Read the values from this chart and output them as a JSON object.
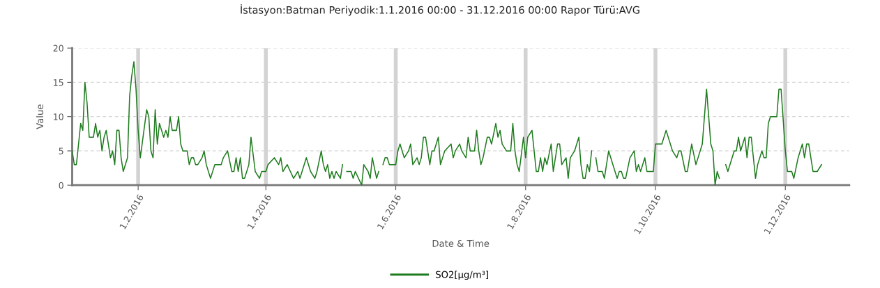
{
  "chart_data": {
    "type": "line",
    "title": "İstasyon:Batman Periyodik:1.1.2016 00:00 - 31.12.2016 00:00 Rapor Türü:AVG",
    "xlabel": "Date & Time",
    "ylabel": "Value",
    "x": [
      "2016-01-01",
      "2016-01-02",
      "2016-01-03",
      "2016-01-05",
      "2016-01-06",
      "2016-01-07",
      "2016-01-08",
      "2016-01-09",
      "2016-01-11",
      "2016-01-12",
      "2016-01-13",
      "2016-01-14",
      "2016-01-15",
      "2016-01-16",
      "2016-01-17",
      "2016-01-19",
      "2016-01-20",
      "2016-01-21",
      "2016-01-22",
      "2016-01-23",
      "2016-01-24",
      "2016-01-25",
      "2016-01-27",
      "2016-01-28",
      "2016-01-29",
      "2016-01-30",
      "2016-01-31",
      "2016-02-01",
      "2016-02-02",
      "2016-02-05",
      "2016-02-06",
      "2016-02-07",
      "2016-02-08",
      "2016-02-09",
      "2016-02-10",
      "2016-02-11",
      "2016-02-13",
      "2016-02-14",
      "2016-02-15",
      "2016-02-16",
      "2016-02-17",
      "2016-02-19",
      "2016-02-20",
      "2016-02-21",
      "2016-02-22",
      "2016-02-24",
      "2016-02-25",
      "2016-02-26",
      "2016-02-27",
      "2016-02-28",
      "2016-02-29",
      "2016-03-02",
      "2016-03-03",
      "2016-03-04",
      "2016-03-06",
      "2016-03-08",
      "2016-03-11",
      "2016-03-12",
      "2016-03-14",
      "2016-03-16",
      "2016-03-17",
      "2016-03-18",
      "2016-03-19",
      "2016-03-20",
      "2016-03-21",
      "2016-03-22",
      "2016-03-24",
      "2016-03-25",
      "2016-03-27",
      "2016-03-29",
      "2016-03-30",
      "2016-04-01",
      "2016-04-02",
      "2016-04-05",
      "2016-04-07",
      "2016-04-08",
      "2016-04-09",
      "2016-04-11",
      "2016-04-14",
      "2016-04-16",
      "2016-04-17",
      "2016-04-20",
      "2016-04-22",
      "2016-04-24",
      "2016-04-25",
      "2016-04-27",
      "2016-04-28",
      "2016-04-29",
      "2016-04-30",
      "2016-05-01",
      "2016-05-02",
      "2016-05-03",
      "2016-05-04",
      "2016-05-06",
      "2016-05-07",
      "2016-05-08",
      "2016-05-09",
      "2016-05-11",
      "2016-05-12",
      "2016-05-13",
      "2016-05-16",
      "2016-05-17",
      "2016-05-19",
      "2016-05-20",
      "2016-05-21",
      "2016-05-23",
      "2016-05-24",
      "2016-05-25",
      "2016-05-26",
      "2016-05-27",
      "2016-05-28",
      "2016-05-29",
      "2016-06-01",
      "2016-06-02",
      "2016-06-03",
      "2016-06-05",
      "2016-06-07",
      "2016-06-08",
      "2016-06-09",
      "2016-06-11",
      "2016-06-12",
      "2016-06-13",
      "2016-06-14",
      "2016-06-15",
      "2016-06-17",
      "2016-06-18",
      "2016-06-19",
      "2016-06-21",
      "2016-06-22",
      "2016-06-24",
      "2016-06-27",
      "2016-06-28",
      "2016-06-29",
      "2016-07-01",
      "2016-07-02",
      "2016-07-04",
      "2016-07-05",
      "2016-07-06",
      "2016-07-08",
      "2016-07-09",
      "2016-07-10",
      "2016-07-11",
      "2016-07-12",
      "2016-07-14",
      "2016-07-15",
      "2016-07-16",
      "2016-07-18",
      "2016-07-19",
      "2016-07-20",
      "2016-07-21",
      "2016-07-23",
      "2016-07-25",
      "2016-07-26",
      "2016-07-27",
      "2016-07-28",
      "2016-07-29",
      "2016-07-31",
      "2016-08-01",
      "2016-08-02",
      "2016-08-04",
      "2016-08-05",
      "2016-08-06",
      "2016-08-07",
      "2016-08-08",
      "2016-08-09",
      "2016-08-10",
      "2016-08-11",
      "2016-08-13",
      "2016-08-14",
      "2016-08-16",
      "2016-08-17",
      "2016-08-18",
      "2016-08-20",
      "2016-08-21",
      "2016-08-22",
      "2016-08-24",
      "2016-08-26",
      "2016-08-27",
      "2016-08-28",
      "2016-08-29",
      "2016-08-30",
      "2016-08-31",
      "2016-09-01",
      "2016-09-02",
      "2016-09-03",
      "2016-09-04",
      "2016-09-06",
      "2016-09-07",
      "2016-09-09",
      "2016-09-10",
      "2016-09-13",
      "2016-09-14",
      "2016-09-15",
      "2016-09-16",
      "2016-09-17",
      "2016-09-19",
      "2016-09-21",
      "2016-09-22",
      "2016-09-23",
      "2016-09-24",
      "2016-09-26",
      "2016-09-27",
      "2016-09-30",
      "2016-10-01",
      "2016-10-04",
      "2016-10-06",
      "2016-10-09",
      "2016-10-11",
      "2016-10-12",
      "2016-10-13",
      "2016-10-15",
      "2016-10-16",
      "2016-10-18",
      "2016-10-20",
      "2016-10-23",
      "2016-10-24",
      "2016-10-25",
      "2016-10-26",
      "2016-10-27",
      "2016-10-28",
      "2016-10-29",
      "2016-10-30",
      "2016-10-31",
      "2016-11-01",
      "2016-11-03",
      "2016-11-04",
      "2016-11-06",
      "2016-11-07",
      "2016-11-08",
      "2016-11-09",
      "2016-11-10",
      "2016-11-11",
      "2016-11-12",
      "2016-11-13",
      "2016-11-14",
      "2016-11-15",
      "2016-11-17",
      "2016-11-18",
      "2016-11-20",
      "2016-11-21",
      "2016-11-22",
      "2016-11-23",
      "2016-11-24",
      "2016-11-27",
      "2016-11-28",
      "2016-11-29",
      "2016-12-01",
      "2016-12-02",
      "2016-12-04",
      "2016-12-05",
      "2016-12-07",
      "2016-12-08",
      "2016-12-09",
      "2016-12-10",
      "2016-12-11",
      "2016-12-12",
      "2016-12-14",
      "2016-12-16",
      "2016-12-18"
    ],
    "series": [
      {
        "name": "SO2[µg/m³]",
        "color": "#1e7b1e",
        "values": [
          5,
          3,
          3,
          9,
          8,
          15,
          12,
          7,
          7,
          9,
          7,
          8,
          5,
          7,
          8,
          4,
          5,
          3,
          8,
          8,
          4,
          2,
          4,
          13,
          16,
          18,
          14,
          8,
          4,
          11,
          10,
          5,
          4,
          11,
          6,
          9,
          7,
          8,
          7,
          10,
          8,
          8,
          10,
          6,
          5,
          5,
          3,
          4,
          4,
          3,
          3,
          4,
          5,
          3,
          1,
          3,
          3,
          4,
          5,
          2,
          2,
          4,
          2,
          4,
          1,
          1,
          3,
          7,
          2,
          1,
          2,
          2,
          3,
          4,
          3,
          4,
          2,
          3,
          1,
          2,
          1,
          4,
          2,
          1,
          2,
          5,
          3,
          2,
          3,
          1,
          2,
          1,
          2,
          1,
          3,
          null,
          2,
          2,
          1,
          2,
          0,
          3,
          2,
          1,
          4,
          1,
          2,
          null,
          3,
          4,
          4,
          3,
          3,
          5,
          6,
          4,
          5,
          6,
          3,
          4,
          3,
          4,
          7,
          7,
          3,
          5,
          5,
          7,
          3,
          5,
          6,
          4,
          5,
          6,
          5,
          4,
          7,
          5,
          5,
          8,
          5,
          3,
          4,
          7,
          7,
          6,
          9,
          7,
          8,
          6,
          5,
          5,
          9,
          5,
          3,
          2,
          7,
          4,
          7,
          8,
          5,
          2,
          2,
          4,
          2,
          4,
          3,
          6,
          2,
          6,
          6,
          3,
          4,
          1,
          4,
          5,
          7,
          3,
          1,
          1,
          3,
          2,
          5,
          null,
          4,
          2,
          2,
          1,
          5,
          4,
          1,
          2,
          2,
          1,
          1,
          4,
          5,
          2,
          3,
          2,
          4,
          2,
          2,
          6,
          6,
          8,
          5,
          4,
          5,
          5,
          2,
          2,
          6,
          3,
          6,
          10,
          14,
          10,
          6,
          5,
          0,
          2,
          1,
          null,
          3,
          2,
          4,
          5,
          5,
          7,
          5,
          6,
          7,
          4,
          7,
          7,
          1,
          3,
          5,
          4,
          4,
          9,
          10,
          10,
          14,
          14,
          5,
          2,
          2,
          1,
          4,
          5,
          6,
          4,
          6,
          6,
          2,
          2,
          3
        ]
      }
    ],
    "xlim": [
      "2016-01-01",
      "2016-12-31"
    ],
    "xticks": [
      {
        "value": "2016-02-01",
        "label": "1.2.2016"
      },
      {
        "value": "2016-04-01",
        "label": "1.4.2016"
      },
      {
        "value": "2016-06-01",
        "label": "1.6.2016"
      },
      {
        "value": "2016-08-01",
        "label": "1.8.2016"
      },
      {
        "value": "2016-10-01",
        "label": "1.10.2016"
      },
      {
        "value": "2016-12-01",
        "label": "1.12.2016"
      }
    ],
    "ylim": [
      0,
      20
    ],
    "yticks": [
      0,
      5,
      10,
      15,
      20
    ],
    "grid": true,
    "legend": "bottom",
    "marker": "none",
    "line_style": "solid"
  }
}
